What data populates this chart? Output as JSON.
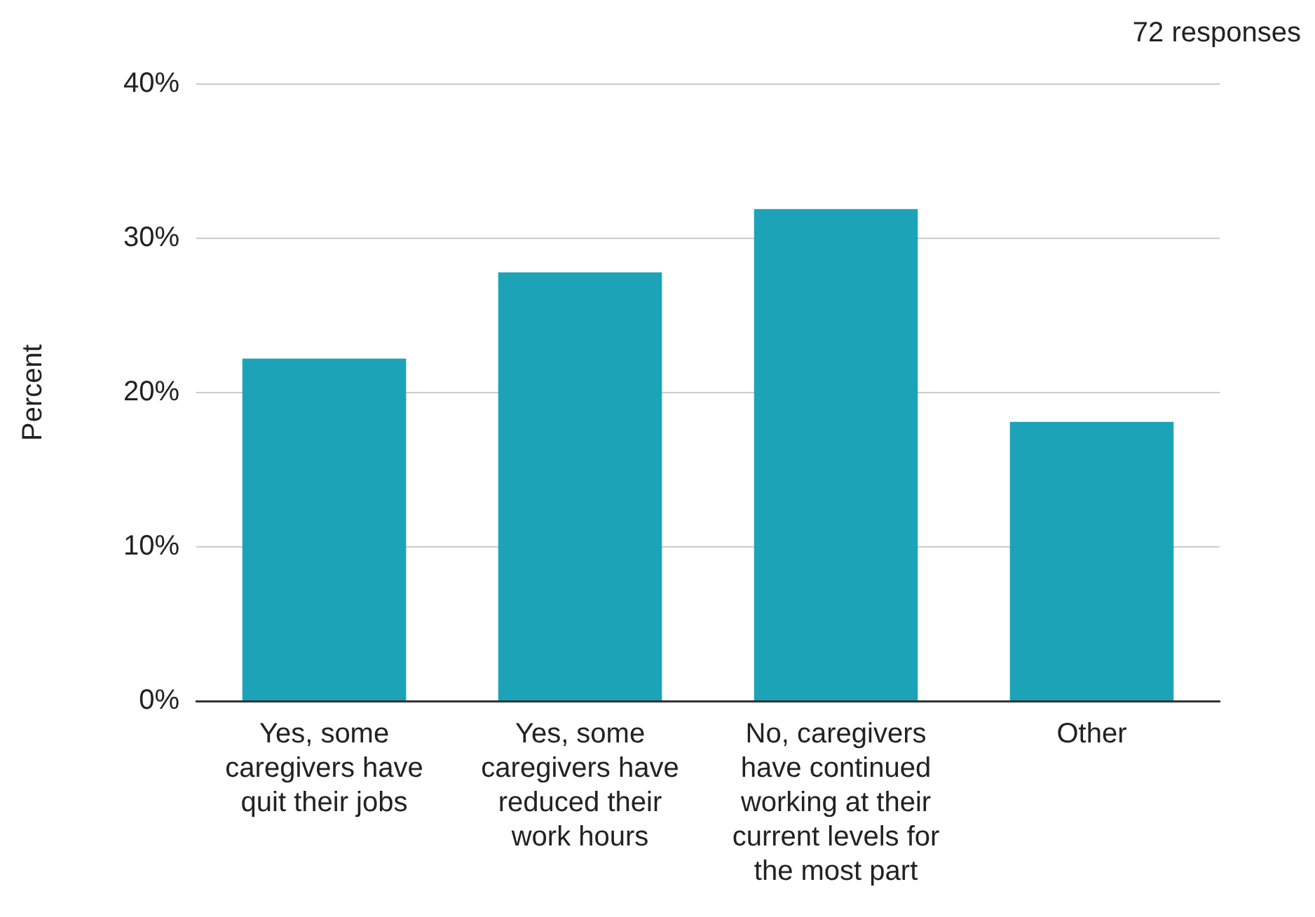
{
  "chart_data": {
    "type": "bar",
    "ylabel": "Percent",
    "annotations": [
      "72 responses"
    ],
    "categories": [
      "Yes, some caregivers have quit their jobs",
      "Yes, some caregivers have reduced their work hours",
      "No, caregivers have continued working at their current levels for the most part",
      "Other"
    ],
    "values": [
      22.2,
      27.8,
      31.9,
      18.1
    ],
    "color": "#1ca3b8",
    "ylim": [
      0,
      40
    ],
    "yticks": [
      {
        "value": 0,
        "label": "0%"
      },
      {
        "value": 10,
        "label": "10%"
      },
      {
        "value": 20,
        "label": "20%"
      },
      {
        "value": 30,
        "label": "30%"
      },
      {
        "value": 40,
        "label": "40%"
      }
    ],
    "grid": "y",
    "legend": false
  }
}
